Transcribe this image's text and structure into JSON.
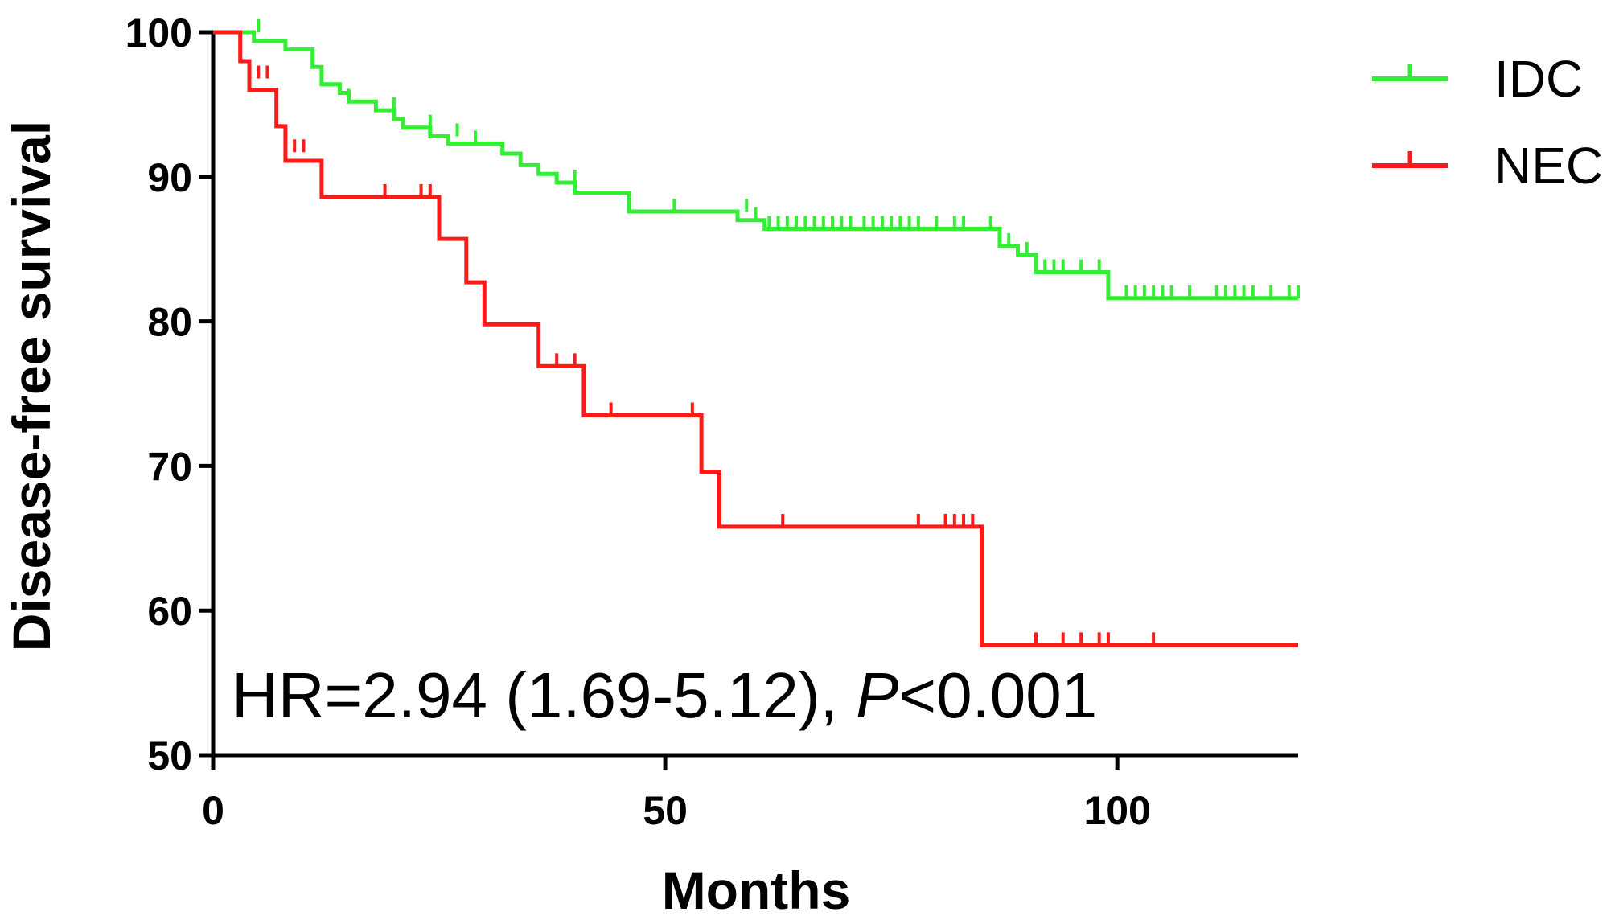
{
  "chart_data": {
    "type": "line",
    "subtype": "kaplan-meier",
    "title": "",
    "xlabel": "Months",
    "ylabel": "Disease-free survival",
    "xlim": [
      0,
      120
    ],
    "ylim": [
      50,
      100
    ],
    "xticks": [
      0,
      50,
      100
    ],
    "yticks": [
      50,
      60,
      70,
      80,
      90,
      100
    ],
    "grid": false,
    "legend_position": "top-right",
    "annotation": {
      "prefix": "HR=2.94 (1.69-5.12), ",
      "italic": "P",
      "suffix": "<0.001"
    },
    "series": [
      {
        "name": "IDC",
        "color": "#33ee33",
        "steps": [
          [
            0,
            100
          ],
          [
            4.5,
            99.4
          ],
          [
            8,
            98.8
          ],
          [
            11,
            97.6
          ],
          [
            12,
            96.4
          ],
          [
            14,
            95.8
          ],
          [
            15,
            95.2
          ],
          [
            18,
            94.6
          ],
          [
            20,
            94.0
          ],
          [
            21,
            93.4
          ],
          [
            24,
            92.8
          ],
          [
            26,
            92.3
          ],
          [
            32,
            91.6
          ],
          [
            34,
            90.8
          ],
          [
            36,
            90.2
          ],
          [
            38,
            89.6
          ],
          [
            40,
            88.9
          ],
          [
            46,
            87.6
          ],
          [
            58,
            87.0
          ],
          [
            61,
            86.4
          ],
          [
            87,
            85.2
          ],
          [
            89,
            84.6
          ],
          [
            91,
            83.4
          ],
          [
            99,
            81.6
          ],
          [
            120,
            81.6
          ]
        ],
        "censors": [
          [
            5,
            100
          ],
          [
            15,
            95.2
          ],
          [
            20,
            94.6
          ],
          [
            24,
            93.4
          ],
          [
            27,
            92.8
          ],
          [
            29,
            92.3
          ],
          [
            40,
            89.6
          ],
          [
            51,
            87.6
          ],
          [
            59,
            87.6
          ],
          [
            60,
            87.0
          ],
          [
            61.5,
            86.4
          ],
          [
            62.5,
            86.4
          ],
          [
            63.5,
            86.4
          ],
          [
            64.5,
            86.4
          ],
          [
            65.5,
            86.4
          ],
          [
            66.5,
            86.4
          ],
          [
            67.5,
            86.4
          ],
          [
            68.5,
            86.4
          ],
          [
            69.5,
            86.4
          ],
          [
            70.5,
            86.4
          ],
          [
            72,
            86.4
          ],
          [
            73,
            86.4
          ],
          [
            74,
            86.4
          ],
          [
            75,
            86.4
          ],
          [
            76,
            86.4
          ],
          [
            77,
            86.4
          ],
          [
            78,
            86.4
          ],
          [
            80,
            86.4
          ],
          [
            82,
            86.4
          ],
          [
            83,
            86.4
          ],
          [
            86,
            86.4
          ],
          [
            88,
            85.2
          ],
          [
            90,
            84.6
          ],
          [
            92,
            83.4
          ],
          [
            93,
            83.4
          ],
          [
            94,
            83.4
          ],
          [
            96,
            83.4
          ],
          [
            98,
            83.4
          ],
          [
            101,
            81.6
          ],
          [
            102,
            81.6
          ],
          [
            103,
            81.6
          ],
          [
            104,
            81.6
          ],
          [
            105,
            81.6
          ],
          [
            106,
            81.6
          ],
          [
            108,
            81.6
          ],
          [
            111,
            81.6
          ],
          [
            112,
            81.6
          ],
          [
            113,
            81.6
          ],
          [
            114,
            81.6
          ],
          [
            115,
            81.6
          ],
          [
            117,
            81.6
          ],
          [
            119,
            81.6
          ],
          [
            120,
            81.6
          ]
        ]
      },
      {
        "name": "NEC",
        "color": "#ff1a1a",
        "steps": [
          [
            0,
            100
          ],
          [
            3,
            98.0
          ],
          [
            4,
            96.0
          ],
          [
            7,
            93.5
          ],
          [
            8,
            91.1
          ],
          [
            12,
            88.6
          ],
          [
            25,
            85.7
          ],
          [
            28,
            82.7
          ],
          [
            30,
            79.8
          ],
          [
            36,
            76.9
          ],
          [
            41,
            73.5
          ],
          [
            54,
            69.6
          ],
          [
            56,
            65.8
          ],
          [
            85,
            57.6
          ],
          [
            120,
            57.6
          ]
        ],
        "censors": [
          [
            5,
            96.8
          ],
          [
            6,
            96.8
          ],
          [
            9,
            91.7
          ],
          [
            10,
            91.7
          ],
          [
            19,
            88.6
          ],
          [
            23,
            88.6
          ],
          [
            24,
            88.6
          ],
          [
            38,
            76.9
          ],
          [
            40,
            76.9
          ],
          [
            44,
            73.5
          ],
          [
            53,
            73.5
          ],
          [
            63,
            65.8
          ],
          [
            78,
            65.8
          ],
          [
            81,
            65.8
          ],
          [
            82,
            65.8
          ],
          [
            83,
            65.8
          ],
          [
            84,
            65.8
          ],
          [
            91,
            57.6
          ],
          [
            94,
            57.6
          ],
          [
            96,
            57.6
          ],
          [
            98,
            57.6
          ],
          [
            99,
            57.6
          ],
          [
            104,
            57.6
          ]
        ]
      }
    ]
  }
}
